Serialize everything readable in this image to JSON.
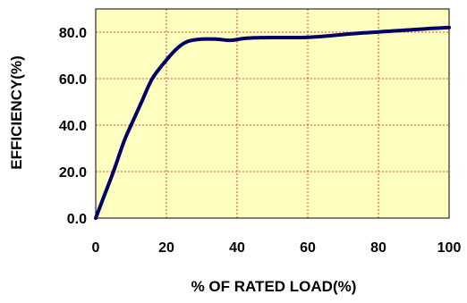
{
  "chart_data": {
    "type": "line",
    "title": "",
    "xlabel": "% OF RATED LOAD(%)",
    "ylabel": "EFFICIENCY(%)",
    "xlim": [
      0,
      100
    ],
    "ylim": [
      0,
      90
    ],
    "x_ticks": [
      0,
      20,
      40,
      60,
      80,
      100
    ],
    "x_tick_labels": [
      "0",
      "20",
      "40",
      "60",
      "80",
      "100"
    ],
    "y_ticks": [
      0,
      20,
      40,
      60,
      80
    ],
    "y_tick_labels": [
      "0.0",
      "20.0",
      "40.0",
      "60.0",
      "80.0"
    ],
    "grid": true,
    "legend": "none",
    "series": [
      {
        "x": [
          0,
          2,
          5,
          8,
          10,
          13,
          16,
          20,
          23,
          26,
          30,
          34,
          38,
          42,
          46,
          50,
          55,
          60,
          65,
          70,
          75,
          80,
          85,
          90,
          95,
          100
        ],
        "y": [
          0,
          8,
          20,
          33,
          40,
          50,
          60,
          68,
          73,
          76,
          77,
          77,
          76.5,
          77.3,
          77.6,
          77.7,
          77.7,
          77.8,
          78.3,
          79,
          79.6,
          80.1,
          80.6,
          81.1,
          81.6,
          82
        ]
      }
    ]
  },
  "colors": {
    "plot_background": "#ffffc0",
    "line": "#000066",
    "grid": "#ff0000",
    "axis": "#000000"
  }
}
